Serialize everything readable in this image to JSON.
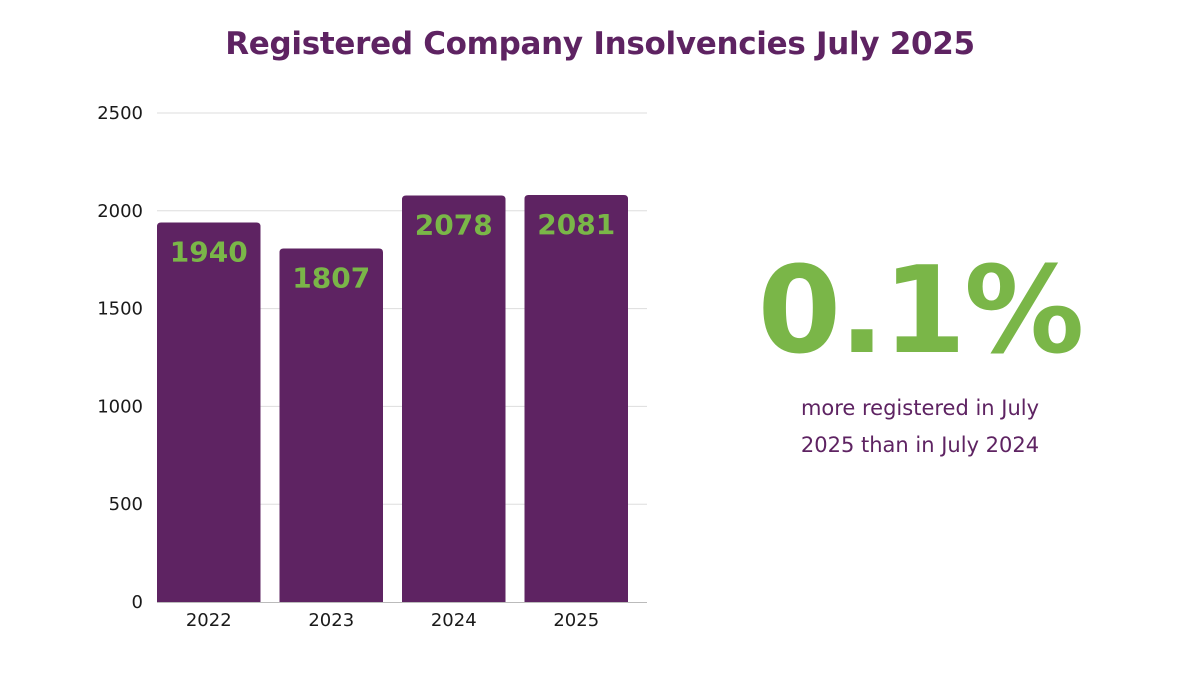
{
  "chart_data": {
    "type": "bar",
    "title": "Registered Company Insolvencies July 2025",
    "categories": [
      "2022",
      "2023",
      "2024",
      "2025"
    ],
    "values": [
      1940,
      1807,
      2078,
      2081
    ],
    "data_labels": [
      "1940",
      "1807",
      "2078",
      "2081"
    ],
    "y_ticks": [
      "0",
      "500",
      "1000",
      "1500",
      "2000",
      "2500"
    ],
    "ylim": [
      0,
      2500
    ],
    "xlabel": "",
    "ylabel": "",
    "grid": true,
    "bar_color": "#5e2362",
    "label_color": "#7ab648"
  },
  "stat": {
    "value": "0.1%",
    "caption": "more registered in July 2025 than in July 2024"
  },
  "colors": {
    "title": "#5e2362",
    "accent_green": "#7ab648",
    "grid": "#dddddd"
  }
}
